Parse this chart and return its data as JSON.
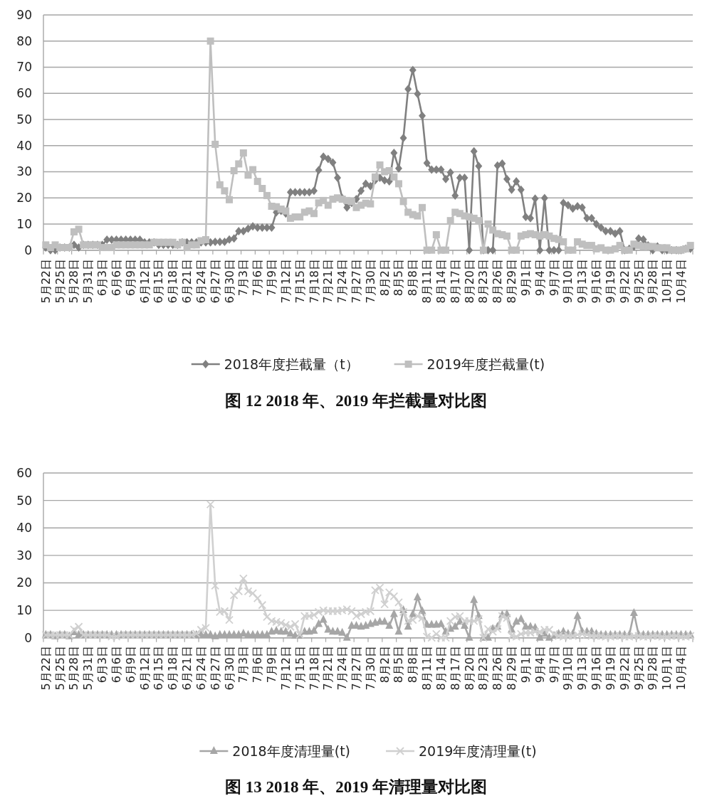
{
  "chart_data": [
    {
      "type": "line",
      "title": "图 12 2018 年、2019 年拦截量对比图",
      "legend": "bottom",
      "grid": "y",
      "ylim": [
        0,
        90
      ],
      "yticks": [
        0,
        10,
        20,
        30,
        40,
        50,
        60,
        70,
        80,
        90
      ],
      "categories": [
        "5月22日",
        null,
        null,
        "5月25日",
        null,
        null,
        "5月28日",
        null,
        null,
        "5月31日",
        null,
        null,
        "6月3日",
        null,
        null,
        "6月6日",
        null,
        null,
        "6月9日",
        null,
        null,
        "6月12日",
        null,
        null,
        "6月15日",
        null,
        null,
        "6月18日",
        null,
        null,
        "6月21日",
        null,
        null,
        "6月24日",
        null,
        null,
        "6月27日",
        null,
        null,
        "6月30日",
        null,
        null,
        "7月3日",
        null,
        null,
        "7月6日",
        null,
        null,
        "7月9日",
        null,
        null,
        "7月12日",
        null,
        null,
        "7月15日",
        null,
        null,
        "7月18日",
        null,
        null,
        "7月21日",
        null,
        null,
        "7月24日",
        null,
        null,
        "7月27日",
        null,
        null,
        "7月30日",
        null,
        null,
        "8月2日",
        null,
        null,
        "8月5日",
        null,
        null,
        "8月8日",
        null,
        null,
        "8月11日",
        null,
        null,
        "8月14日",
        null,
        null,
        "8月17日",
        null,
        null,
        "8月20日",
        null,
        null,
        "8月23日",
        null,
        null,
        "8月26日",
        null,
        null,
        "8月29日",
        null,
        null,
        "9月1日",
        null,
        null,
        "9月4日",
        null,
        null,
        "9月7日",
        null,
        null,
        "9月10日",
        null,
        null,
        "9月13日",
        null,
        null,
        "9月16日",
        null,
        null,
        "9月19日",
        null,
        null,
        "9月22日",
        null,
        null,
        "9月25日",
        null,
        null,
        "9月28日",
        null,
        null,
        "10月1日",
        null,
        null,
        "10月4日",
        null,
        null
      ],
      "series": [
        {
          "name": "2018年度拦截量（t）",
          "color": "#808080",
          "marker": "diamond",
          "values": [
            1,
            0,
            0,
            1,
            1,
            1,
            2,
            1,
            2,
            2,
            2,
            2,
            2,
            4,
            4,
            4,
            4,
            4,
            4,
            4,
            4,
            3,
            3,
            3,
            2,
            2,
            2,
            2,
            2,
            3,
            3,
            3,
            3,
            3,
            3,
            3,
            3.2,
            3.2,
            3.2,
            4.1,
            4.5,
            7.3,
            7.3,
            8.2,
            9.1,
            8.6,
            8.6,
            8.6,
            8.6,
            14.5,
            15,
            14,
            22.2,
            22.2,
            22.2,
            22.2,
            22.2,
            22.7,
            30.6,
            35.8,
            34.9,
            33.5,
            27.7,
            19.9,
            16.3,
            18.1,
            19.5,
            22.7,
            25.4,
            24.5,
            26.7,
            27.7,
            26.7,
            26.3,
            37.2,
            31.3,
            42.9,
            61.6,
            68.9,
            59.8,
            51.4,
            33.3,
            30.8,
            30.8,
            30.8,
            27.2,
            29.7,
            20.9,
            27.7,
            27.7,
            0,
            37.8,
            32.2,
            0,
            0,
            0,
            32.4,
            33.1,
            27.2,
            23.1,
            26.3,
            23.1,
            12.7,
            12.2,
            19.7,
            0,
            19.9,
            0,
            0,
            0,
            18.1,
            17.2,
            15.9,
            16.8,
            16.3,
            12.2,
            12.2,
            10,
            8.6,
            7.3,
            7.3,
            6.3,
            7.3,
            0,
            0.5,
            1.4,
            4.5,
            4.1,
            1.8,
            0,
            1.4,
            0,
            0,
            0,
            0,
            0,
            0.5,
            0.5
          ]
        },
        {
          "name": "2019年度拦截量(t)",
          "color": "#bfbfbf",
          "marker": "square",
          "values": [
            2,
            1,
            2,
            1,
            1,
            1,
            7,
            8,
            2,
            2,
            2,
            2,
            1,
            1,
            1,
            2,
            2,
            2,
            2,
            2,
            2,
            2,
            2,
            3,
            3,
            3,
            3,
            3,
            2,
            3,
            1,
            2,
            2,
            3.6,
            4,
            80,
            40.5,
            25,
            22.7,
            19.3,
            30.4,
            33,
            37.2,
            28.7,
            30.8,
            26.3,
            23.6,
            20.9,
            16.8,
            16.6,
            15.7,
            15,
            12.2,
            12.7,
            12.7,
            14.5,
            15,
            14,
            18.1,
            19,
            17.2,
            19.5,
            20,
            19.5,
            19,
            18.6,
            16.3,
            17.2,
            18,
            17.7,
            28,
            32.6,
            30,
            30.4,
            28,
            25.4,
            18.6,
            14.5,
            13.6,
            13.1,
            16.3,
            0,
            0,
            5.9,
            0,
            0,
            11.3,
            14.5,
            14,
            13.1,
            12.7,
            12.2,
            11.3,
            0,
            10,
            7.7,
            6.3,
            5.9,
            5.4,
            0,
            0,
            5.4,
            5.9,
            6.3,
            5.9,
            5.4,
            5.9,
            5.4,
            4.5,
            4.1,
            3.2,
            0,
            0,
            3.2,
            2.3,
            1.8,
            1.8,
            0.5,
            0.9,
            0,
            0,
            0.5,
            1.8,
            0,
            0,
            2.3,
            1.8,
            1.4,
            1.4,
            1.4,
            0.9,
            0.9,
            0.9,
            0,
            0,
            0,
            0.5,
            1.8
          ]
        }
      ]
    },
    {
      "type": "line",
      "title": "图 13 2018 年、2019 年清理量对比图",
      "legend": "bottom",
      "grid": "y",
      "ylim": [
        0,
        60
      ],
      "yticks": [
        0,
        10,
        20,
        30,
        40,
        50,
        60
      ],
      "categories": [
        "5月22日",
        null,
        null,
        "5月25日",
        null,
        null,
        "5月28日",
        null,
        null,
        "5月31日",
        null,
        null,
        "6月3日",
        null,
        null,
        "6月6日",
        null,
        null,
        "6月9日",
        null,
        null,
        "6月12日",
        null,
        null,
        "6月15日",
        null,
        null,
        "6月18日",
        null,
        null,
        "6月21日",
        null,
        null,
        "6月24日",
        null,
        null,
        "6月27日",
        null,
        null,
        "6月30日",
        null,
        null,
        "7月3日",
        null,
        null,
        "7月6日",
        null,
        null,
        "7月9日",
        null,
        null,
        "7月12日",
        null,
        null,
        "7月15日",
        null,
        null,
        "7月18日",
        null,
        null,
        "7月21日",
        null,
        null,
        "7月24日",
        null,
        null,
        "7月27日",
        null,
        null,
        "7月30日",
        null,
        null,
        "8月2日",
        null,
        null,
        "8月5日",
        null,
        null,
        "8月8日",
        null,
        null,
        "8月11日",
        null,
        null,
        "8月14日",
        null,
        null,
        "8月17日",
        null,
        null,
        "8月20日",
        null,
        null,
        "8月23日",
        null,
        null,
        "8月26日",
        null,
        null,
        "8月29日",
        null,
        null,
        "9月1日",
        null,
        null,
        "9月4日",
        null,
        null,
        "9月7日",
        null,
        null,
        "9月10日",
        null,
        null,
        "9月13日",
        null,
        null,
        "9月16日",
        null,
        null,
        "9月19日",
        null,
        null,
        "9月22日",
        null,
        null,
        "9月25日",
        null,
        null,
        "9月28日",
        null,
        null,
        "10月1日",
        null,
        null,
        "10月4日",
        null,
        null
      ],
      "series": [
        {
          "name": "2018年度清理量(t)",
          "color": "#a6a6a6",
          "marker": "triangle",
          "values": [
            1,
            1,
            0.5,
            1,
            1,
            0.5,
            2,
            1,
            1,
            1,
            1,
            1,
            1,
            1,
            1,
            1,
            1,
            1,
            1,
            1,
            1,
            1,
            1,
            1,
            1,
            1,
            1,
            1,
            1,
            1,
            1,
            1,
            1,
            1,
            1,
            1,
            0.5,
            1,
            1,
            1,
            1,
            1,
            1.5,
            1,
            1,
            1,
            1,
            1,
            2.2,
            2.5,
            2.2,
            2.2,
            1.4,
            0.7,
            0.7,
            2.2,
            2.2,
            2.5,
            5,
            6.5,
            2.9,
            2.2,
            2.2,
            1.8,
            0,
            4.3,
            4.3,
            4,
            4.3,
            5,
            5.4,
            5.8,
            5.8,
            4.3,
            8.6,
            2.2,
            10,
            4,
            8.6,
            14.7,
            9.7,
            4.7,
            4.7,
            4.7,
            5,
            2.2,
            3.2,
            4,
            5.8,
            4.3,
            0,
            13.7,
            7.9,
            0,
            0,
            3.2,
            4,
            8.3,
            8.6,
            2.9,
            5.8,
            6.8,
            4,
            4,
            3.6,
            0,
            1.4,
            0,
            0.7,
            1.4,
            2.2,
            1.4,
            1.4,
            7.9,
            2.2,
            2.2,
            2.2,
            1.4,
            1,
            1,
            1,
            1,
            1,
            1,
            1,
            9,
            1.1,
            1,
            1,
            1,
            1,
            1,
            1,
            1,
            1,
            1,
            1,
            1
          ]
        },
        {
          "name": "2019年度清理量(t)",
          "color": "#d0d0d0",
          "marker": "cross",
          "values": [
            1,
            1,
            1,
            1,
            1,
            1,
            3,
            4,
            1,
            1,
            1,
            1,
            1,
            1,
            0.5,
            0.5,
            1,
            1,
            1,
            1,
            1,
            1,
            1,
            1,
            1,
            1,
            1,
            1,
            1,
            1,
            1,
            1,
            1.5,
            2.9,
            3.6,
            48.6,
            19,
            9.4,
            9.7,
            6.5,
            15.5,
            16.9,
            21.6,
            16.9,
            16.2,
            14.4,
            11.9,
            7.6,
            6.1,
            5.8,
            5.4,
            4.7,
            4,
            5,
            1.1,
            7.9,
            7.9,
            8.3,
            9.4,
            10,
            9.7,
            9.7,
            9.7,
            10,
            10.4,
            9.7,
            7.9,
            8.6,
            9.4,
            9.7,
            17.3,
            18.3,
            12.2,
            16.5,
            15.1,
            12.9,
            9.4,
            6.1,
            6.5,
            7.9,
            7.2,
            0.4,
            0,
            1.4,
            0,
            0,
            6.1,
            7.6,
            7.9,
            6.1,
            6.1,
            6.1,
            6.8,
            0,
            3.2,
            2.2,
            3.2,
            7.9,
            7.2,
            0.7,
            0.4,
            1.4,
            1.8,
            1.8,
            2.2,
            2.2,
            2.9,
            2.9,
            1.4,
            0.7,
            0.4,
            0.7,
            0.7,
            1.1,
            1.4,
            1.1,
            0.7,
            0.7,
            0.7,
            0.4,
            0.4,
            0.7,
            0.7,
            0.4,
            0.4,
            0.7,
            0.7,
            0.4,
            0.4,
            0.7,
            0.7,
            0.4,
            0.4,
            0.7,
            0.7,
            0.4,
            0.4,
            0.7
          ]
        }
      ]
    }
  ]
}
